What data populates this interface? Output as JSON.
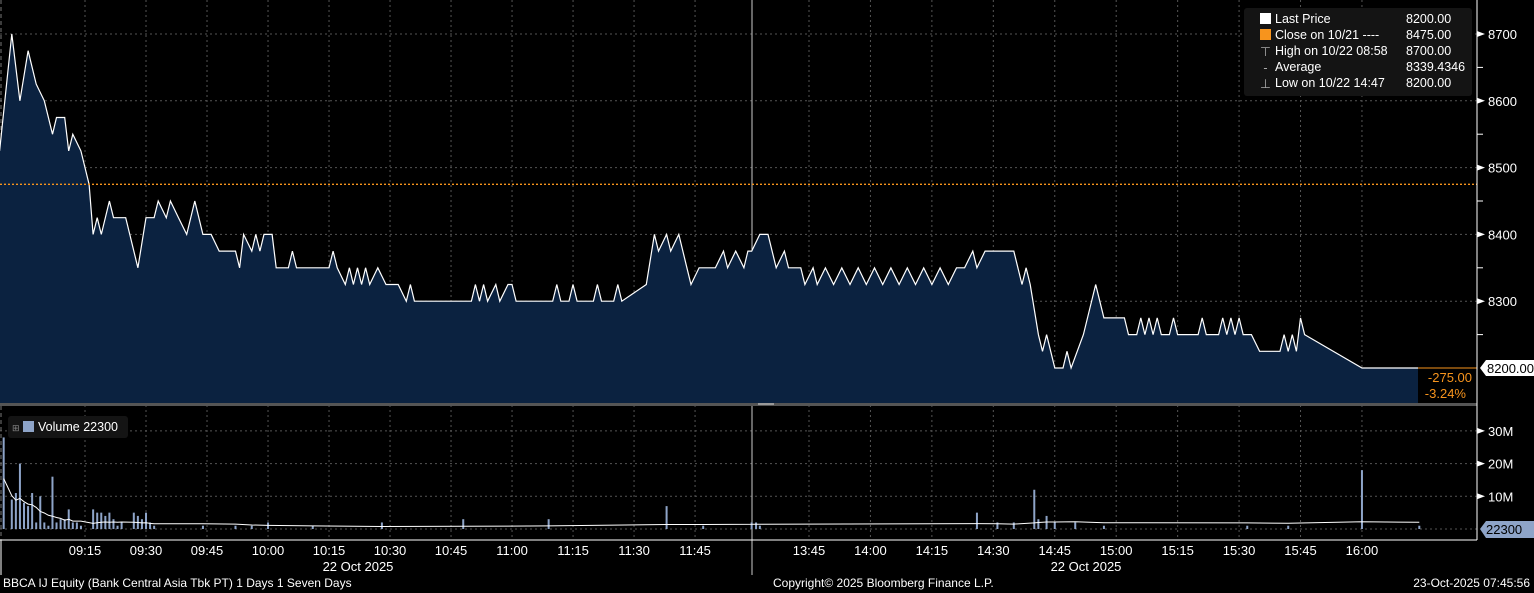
{
  "chart_data": {
    "type": "line",
    "security": "BBCA IJ Equity (Bank Central Asia Tbk PT) 1 Days 1 Seven Days",
    "date_label": "22 Oct 2025",
    "x_ticks_morning": [
      "09:15",
      "09:30",
      "09:45",
      "10:00",
      "10:15",
      "10:30",
      "10:45",
      "11:00",
      "11:15",
      "11:30",
      "11:45"
    ],
    "x_ticks_afternoon": [
      "13:45",
      "14:00",
      "14:15",
      "14:30",
      "14:45",
      "15:00",
      "15:15",
      "15:30",
      "15:45",
      "16:00"
    ],
    "price_axis": {
      "ticks": [
        "8700",
        "8600",
        "8500",
        "8400",
        "8300"
      ],
      "ylim": [
        8150,
        8750
      ]
    },
    "volume_axis": {
      "ticks": [
        "30M",
        "20M",
        "10M"
      ],
      "ylim": [
        0,
        33
      ]
    },
    "grid": true,
    "legend_placement": "top-right",
    "colors": {
      "last_price": "#ffffff",
      "close": "#f7941d",
      "fill": "#0b2240",
      "volume": "#8ea4c8",
      "accent_change": "#f7941d"
    },
    "legend": [
      {
        "label": "Last Price",
        "value": "8200.00",
        "icon": "white-square"
      },
      {
        "label": "Close on 10/21 ----",
        "value": "8475.00",
        "icon": "orange-square"
      },
      {
        "label": "High on 10/22 08:58",
        "value": "8700.00",
        "icon": "high-marker-icon"
      },
      {
        "label": "Average",
        "value": "8339.4346",
        "icon": "average-marker-icon"
      },
      {
        "label": "Low on 10/22 14:47",
        "value": "8200.00",
        "icon": "low-marker-icon"
      }
    ],
    "previous_close": 8475,
    "last_price_label": "8200.00",
    "change": "-275.00",
    "change_pct": "-3.24%",
    "volume_legend": {
      "label": "Volume",
      "value": "22300"
    },
    "volume_last_label": "22300",
    "price_series": [
      [
        "08:54",
        8525
      ],
      [
        "08:57",
        8700
      ],
      [
        "08:59",
        8600
      ],
      [
        "09:01",
        8675
      ],
      [
        "09:03",
        8625
      ],
      [
        "09:05",
        8600
      ],
      [
        "09:07",
        8550
      ],
      [
        "09:08",
        8575
      ],
      [
        "09:10",
        8575
      ],
      [
        "09:11",
        8525
      ],
      [
        "09:12",
        8550
      ],
      [
        "09:14",
        8525
      ],
      [
        "09:16",
        8475
      ],
      [
        "09:17",
        8400
      ],
      [
        "09:18",
        8425
      ],
      [
        "09:19",
        8400
      ],
      [
        "09:21",
        8450
      ],
      [
        "09:22",
        8425
      ],
      [
        "09:25",
        8425
      ],
      [
        "09:28",
        8350
      ],
      [
        "09:30",
        8425
      ],
      [
        "09:32",
        8425
      ],
      [
        "09:33",
        8450
      ],
      [
        "09:35",
        8425
      ],
      [
        "09:36",
        8450
      ],
      [
        "09:38",
        8425
      ],
      [
        "09:40",
        8400
      ],
      [
        "09:42",
        8450
      ],
      [
        "09:44",
        8400
      ],
      [
        "09:46",
        8400
      ],
      [
        "09:48",
        8375
      ],
      [
        "09:52",
        8375
      ],
      [
        "09:53",
        8350
      ],
      [
        "09:54",
        8400
      ],
      [
        "09:56",
        8375
      ],
      [
        "09:57",
        8400
      ],
      [
        "09:58",
        8375
      ],
      [
        "09:59",
        8400
      ],
      [
        "10:01",
        8400
      ],
      [
        "10:02",
        8350
      ],
      [
        "10:05",
        8350
      ],
      [
        "10:06",
        8375
      ],
      [
        "10:07",
        8350
      ],
      [
        "10:15",
        8350
      ],
      [
        "10:16",
        8375
      ],
      [
        "10:17",
        8350
      ],
      [
        "10:19",
        8325
      ],
      [
        "10:20",
        8350
      ],
      [
        "10:21",
        8325
      ],
      [
        "10:22",
        8350
      ],
      [
        "10:23",
        8325
      ],
      [
        "10:24",
        8350
      ],
      [
        "10:25",
        8325
      ],
      [
        "10:27",
        8350
      ],
      [
        "10:29",
        8325
      ],
      [
        "10:32",
        8325
      ],
      [
        "10:34",
        8300
      ],
      [
        "10:35",
        8325
      ],
      [
        "10:36",
        8300
      ],
      [
        "10:38",
        8300
      ],
      [
        "10:50",
        8300
      ],
      [
        "10:51",
        8325
      ],
      [
        "10:52",
        8300
      ],
      [
        "10:53",
        8325
      ],
      [
        "10:54",
        8300
      ],
      [
        "10:56",
        8325
      ],
      [
        "10:57",
        8300
      ],
      [
        "10:59",
        8325
      ],
      [
        "11:00",
        8325
      ],
      [
        "11:01",
        8300
      ],
      [
        "11:10",
        8300
      ],
      [
        "11:11",
        8325
      ],
      [
        "11:12",
        8300
      ],
      [
        "11:14",
        8300
      ],
      [
        "11:15",
        8325
      ],
      [
        "11:16",
        8300
      ],
      [
        "11:20",
        8300
      ],
      [
        "11:21",
        8325
      ],
      [
        "11:22",
        8300
      ],
      [
        "11:25",
        8300
      ],
      [
        "11:26",
        8325
      ],
      [
        "11:27",
        8300
      ],
      [
        "11:33",
        8325
      ],
      [
        "11:35",
        8400
      ],
      [
        "11:36",
        8375
      ],
      [
        "11:38",
        8400
      ],
      [
        "11:39",
        8375
      ],
      [
        "11:41",
        8400
      ],
      [
        "11:43",
        8350
      ],
      [
        "11:44",
        8325
      ],
      [
        "11:46",
        8350
      ],
      [
        "11:50",
        8350
      ],
      [
        "11:52",
        8375
      ],
      [
        "11:53",
        8350
      ],
      [
        "11:55",
        8375
      ],
      [
        "11:57",
        8350
      ],
      [
        "11:58",
        8375
      ],
      [
        "13:31",
        8375
      ],
      [
        "13:33",
        8400
      ],
      [
        "13:35",
        8400
      ],
      [
        "13:37",
        8350
      ],
      [
        "13:39",
        8375
      ],
      [
        "13:40",
        8350
      ],
      [
        "13:43",
        8350
      ],
      [
        "13:44",
        8325
      ],
      [
        "13:46",
        8350
      ],
      [
        "13:47",
        8325
      ],
      [
        "13:49",
        8350
      ],
      [
        "13:51",
        8325
      ],
      [
        "13:53",
        8350
      ],
      [
        "13:55",
        8325
      ],
      [
        "13:57",
        8350
      ],
      [
        "13:59",
        8325
      ],
      [
        "14:01",
        8350
      ],
      [
        "14:03",
        8325
      ],
      [
        "14:05",
        8350
      ],
      [
        "14:07",
        8325
      ],
      [
        "14:09",
        8350
      ],
      [
        "14:11",
        8325
      ],
      [
        "14:13",
        8350
      ],
      [
        "14:15",
        8325
      ],
      [
        "14:17",
        8350
      ],
      [
        "14:19",
        8325
      ],
      [
        "14:21",
        8350
      ],
      [
        "14:23",
        8350
      ],
      [
        "14:25",
        8375
      ],
      [
        "14:26",
        8350
      ],
      [
        "14:28",
        8375
      ],
      [
        "14:35",
        8375
      ],
      [
        "14:37",
        8325
      ],
      [
        "14:38",
        8350
      ],
      [
        "14:39",
        8325
      ],
      [
        "14:41",
        8250
      ],
      [
        "14:42",
        8225
      ],
      [
        "14:43",
        8250
      ],
      [
        "14:44",
        8225
      ],
      [
        "14:45",
        8200
      ],
      [
        "14:47",
        8200
      ],
      [
        "14:48",
        8225
      ],
      [
        "14:49",
        8200
      ],
      [
        "14:52",
        8250
      ],
      [
        "14:55",
        8325
      ],
      [
        "14:56",
        8300
      ],
      [
        "14:57",
        8275
      ],
      [
        "15:02",
        8275
      ],
      [
        "15:03",
        8250
      ],
      [
        "15:05",
        8250
      ],
      [
        "15:06",
        8275
      ],
      [
        "15:07",
        8250
      ],
      [
        "15:08",
        8275
      ],
      [
        "15:09",
        8250
      ],
      [
        "15:10",
        8275
      ],
      [
        "15:11",
        8250
      ],
      [
        "15:13",
        8250
      ],
      [
        "15:14",
        8275
      ],
      [
        "15:15",
        8250
      ],
      [
        "15:20",
        8250
      ],
      [
        "15:21",
        8275
      ],
      [
        "15:22",
        8250
      ],
      [
        "15:25",
        8250
      ],
      [
        "15:26",
        8275
      ],
      [
        "15:27",
        8250
      ],
      [
        "15:28",
        8275
      ],
      [
        "15:29",
        8250
      ],
      [
        "15:30",
        8275
      ],
      [
        "15:31",
        8250
      ],
      [
        "15:33",
        8250
      ],
      [
        "15:35",
        8225
      ],
      [
        "15:40",
        8225
      ],
      [
        "15:41",
        8250
      ],
      [
        "15:42",
        8225
      ],
      [
        "15:43",
        8250
      ],
      [
        "15:44",
        8225
      ],
      [
        "15:45",
        8275
      ],
      [
        "15:46",
        8250
      ],
      [
        "16:00",
        8200
      ],
      [
        "16:14",
        8200
      ]
    ],
    "volume_series": [
      [
        "08:55",
        28
      ],
      [
        "08:57",
        9
      ],
      [
        "08:58",
        11
      ],
      [
        "08:59",
        20
      ],
      [
        "09:00",
        8
      ],
      [
        "09:01",
        7
      ],
      [
        "09:02",
        11
      ],
      [
        "09:03",
        2
      ],
      [
        "09:04",
        10
      ],
      [
        "09:05",
        2
      ],
      [
        "09:06",
        1
      ],
      [
        "09:07",
        16
      ],
      [
        "09:08",
        2
      ],
      [
        "09:09",
        3
      ],
      [
        "09:10",
        3
      ],
      [
        "09:11",
        6
      ],
      [
        "09:12",
        2
      ],
      [
        "09:13",
        2
      ],
      [
        "09:14",
        1
      ],
      [
        "09:17",
        6
      ],
      [
        "09:18",
        5
      ],
      [
        "09:19",
        5
      ],
      [
        "09:20",
        4
      ],
      [
        "09:21",
        5
      ],
      [
        "09:22",
        3
      ],
      [
        "09:23",
        1
      ],
      [
        "09:24",
        2
      ],
      [
        "09:27",
        5
      ],
      [
        "09:28",
        4
      ],
      [
        "09:29",
        3
      ],
      [
        "09:30",
        5
      ],
      [
        "09:31",
        2
      ],
      [
        "09:32",
        1
      ],
      [
        "09:44",
        1
      ],
      [
        "09:52",
        1
      ],
      [
        "09:56",
        1
      ],
      [
        "10:00",
        2
      ],
      [
        "10:11",
        1
      ],
      [
        "10:28",
        2
      ],
      [
        "10:48",
        3
      ],
      [
        "11:09",
        3
      ],
      [
        "11:38",
        7
      ],
      [
        "11:47",
        1
      ],
      [
        "12:00",
        2
      ],
      [
        "13:31",
        2
      ],
      [
        "13:33",
        1
      ],
      [
        "14:26",
        5
      ],
      [
        "14:31",
        2
      ],
      [
        "14:35",
        2
      ],
      [
        "14:40",
        12
      ],
      [
        "14:41",
        3
      ],
      [
        "14:43",
        4
      ],
      [
        "14:45",
        2
      ],
      [
        "14:50",
        2
      ],
      [
        "14:57",
        1
      ],
      [
        "15:32",
        1
      ],
      [
        "15:42",
        1
      ],
      [
        "16:00",
        18
      ],
      [
        "16:14",
        1
      ]
    ]
  },
  "footer": {
    "left": "BBCA IJ Equity (Bank Central Asia Tbk PT) 1 Days 1 Seven Days",
    "center": "Copyright© 2025 Bloomberg Finance L.P.",
    "right": "23-Oct-2025 07:45:56"
  }
}
